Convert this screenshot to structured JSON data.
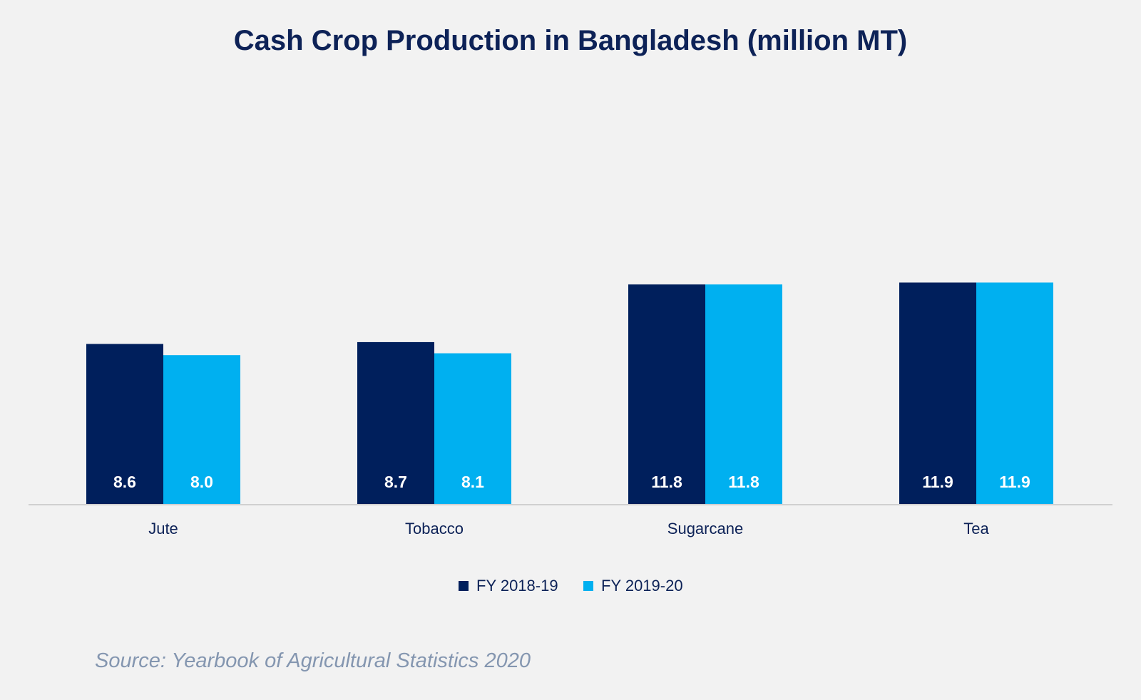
{
  "chart_data": {
    "type": "bar",
    "title": "Cash Crop Production in Bangladesh (million MT)",
    "categories": [
      "Jute",
      "Tobacco",
      "Sugarcane",
      "Tea"
    ],
    "series": [
      {
        "name": "FY 2018-19",
        "values": [
          8.6,
          8.7,
          11.8,
          11.9
        ],
        "labels": [
          "8.6",
          "8.7",
          "11.8",
          "11.9"
        ],
        "color": "#001f5c"
      },
      {
        "name": "FY 2019-20",
        "values": [
          8.0,
          8.1,
          11.8,
          11.9
        ],
        "labels": [
          "8.0",
          "8.1",
          "11.8",
          "11.9"
        ],
        "color": "#00b0f0"
      }
    ],
    "ylim": [
      0,
      16
    ],
    "grid": false,
    "legend_position": "bottom",
    "xlabel": "",
    "ylabel": ""
  },
  "source": "Source: Yearbook of Agricultural Statistics 2020",
  "colors": {
    "background": "#f2f2f2",
    "title": "#0d2257",
    "axis_text": "#0d2257",
    "data_label": "#ffffff",
    "axis_line": "#d0d0d0",
    "source_text": "#8496b0"
  }
}
